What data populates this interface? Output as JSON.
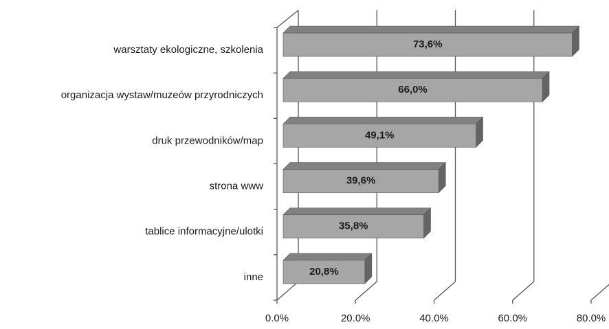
{
  "chart_data": {
    "type": "bar3d-horizontal",
    "categories": [
      "warsztaty ekologiczne, szkolenia",
      "organizacja wystaw/muzeów przyrodniczych",
      "druk przewodników/map",
      "strona www",
      "tablice informacyjne/ulotki",
      "inne"
    ],
    "values": [
      73.6,
      66.0,
      49.1,
      39.6,
      35.8,
      20.8
    ],
    "value_labels": [
      "73,6%",
      "66,0%",
      "49,1%",
      "39,6%",
      "35,8%",
      "20,8%"
    ],
    "color": "#a6a6a6",
    "xlim": [
      0,
      80
    ],
    "xticks": [
      {
        "value": 0,
        "label": "0.0%"
      },
      {
        "value": 20,
        "label": "20.0%"
      },
      {
        "value": 40,
        "label": "40.0%"
      },
      {
        "value": 60,
        "label": "60.0%"
      },
      {
        "value": 80,
        "label": "80.0%"
      }
    ],
    "grid": true
  }
}
